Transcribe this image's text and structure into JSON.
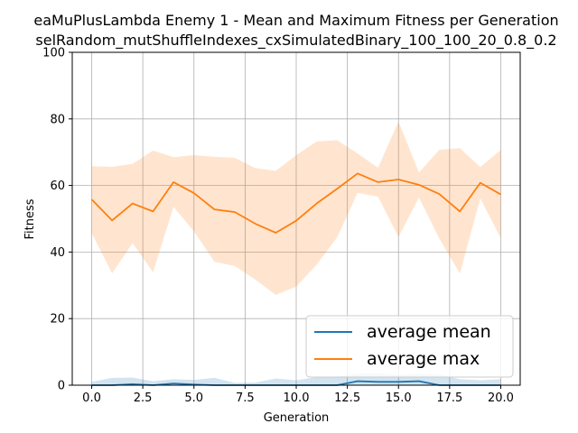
{
  "chart_data": {
    "type": "line",
    "title": "eaMuPlusLambda Enemy 1 - Mean and Maximum Fitness per Generation",
    "subtitle": "selRandom_mutShuffleIndexes_cxSimulatedBinary_100_100_20_0.8_0.2",
    "xlabel": "Generation",
    "ylabel": "Fitness",
    "xlim": [
      -0.95,
      20.95
    ],
    "ylim": [
      0,
      100
    ],
    "xticks": [
      0.0,
      2.5,
      5.0,
      7.5,
      10.0,
      12.5,
      15.0,
      17.5,
      20.0
    ],
    "xtick_labels": [
      "0.0",
      "2.5",
      "5.0",
      "7.5",
      "10.0",
      "12.5",
      "15.0",
      "17.5",
      "20.0"
    ],
    "yticks": [
      0,
      20,
      40,
      60,
      80,
      100
    ],
    "ytick_labels": [
      "0",
      "20",
      "40",
      "60",
      "80",
      "100"
    ],
    "grid": true,
    "legend_position": "lower-right",
    "x": [
      0,
      1,
      2,
      3,
      4,
      5,
      6,
      7,
      8,
      9,
      10,
      11,
      12,
      13,
      14,
      15,
      16,
      17,
      18,
      19,
      20
    ],
    "series": [
      {
        "name": "average mean",
        "color": "#1f77b4",
        "values": [
          0.0,
          0.0,
          0.3,
          0.0,
          0.5,
          0.2,
          0.0,
          0.0,
          0.0,
          0.0,
          0.0,
          0.0,
          0.0,
          1.2,
          1.0,
          1.0,
          1.2,
          0.0,
          0.0,
          0.0,
          0.0
        ],
        "band_upper": [
          1.0,
          2.2,
          2.3,
          1.2,
          1.8,
          1.6,
          2.2,
          0.7,
          0.8,
          2.0,
          1.5,
          2.4,
          2.6,
          3.5,
          3.6,
          3.0,
          3.4,
          3.2,
          1.8,
          1.5,
          1.8
        ],
        "band_lower": [
          0,
          0,
          0,
          0,
          0,
          0,
          0,
          0,
          0,
          0,
          0,
          0,
          0,
          0,
          0,
          0,
          0,
          0,
          0,
          0,
          0
        ]
      },
      {
        "name": "average max",
        "color": "#ff7f0e",
        "values": [
          55.8,
          49.5,
          54.6,
          52.2,
          61.0,
          57.7,
          52.8,
          52.0,
          48.5,
          45.8,
          49.4,
          54.6,
          59.0,
          63.6,
          61.0,
          61.8,
          60.2,
          57.4,
          52.2,
          60.8,
          57.3
        ],
        "band_upper": [
          65.8,
          65.6,
          66.5,
          70.5,
          68.5,
          69.1,
          68.6,
          68.3,
          65.2,
          64.4,
          69.1,
          73.2,
          73.6,
          69.6,
          65.3,
          79.2,
          63.9,
          70.7,
          71.2,
          65.5,
          70.7
        ],
        "band_lower": [
          45.7,
          33.6,
          42.7,
          33.9,
          53.6,
          46.2,
          37.1,
          35.8,
          31.7,
          27.1,
          29.6,
          36.2,
          44.4,
          57.8,
          56.6,
          44.5,
          56.4,
          44.0,
          33.5,
          56.1,
          44.2
        ]
      }
    ]
  }
}
